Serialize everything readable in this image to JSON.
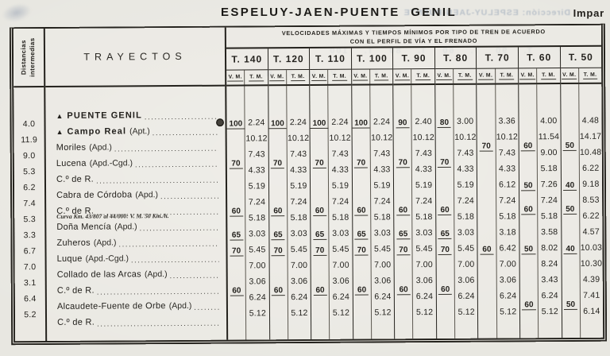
{
  "header": {
    "title": "ESPELUY-JAEN-PUENTE GENIL",
    "page_side": "Impar"
  },
  "bleedthrough": {
    "top_line": "Dirección: ESPELUY-JAEN-PUENTE",
    "header_band": "T. 90   T. 60   T. 80   T. 100",
    "header_band2": "V. M.  T. M.  V. M.  T. M.  V. M.  T. M."
  },
  "table": {
    "distancias_label": "Distancias intermedias",
    "trayectos_label": "TRAYECTOS",
    "caption_line1": "VELOCIDADES MÁXIMAS Y TIEMPOS MÍNIMOS POR TIPO DE TREN DE ACUERDO",
    "caption_line2": "CON EL PERFIL DE VÍA Y EL FRENADO",
    "vm_label": "V. M.",
    "tm_label": "T. M.",
    "stations": [
      {
        "marker": "▲",
        "name": "PUENTE GENIL",
        "bold": true
      },
      {
        "marker": "▲",
        "name": "Campo Real",
        "suffix": "(Apt.)",
        "bold": true,
        "dist": "4.0",
        "bullet": true
      },
      {
        "name": "Moriles",
        "suffix": "(Apd.)",
        "dist": "11.9"
      },
      {
        "name": "Lucena",
        "suffix": "(Apd.-Cgd.)",
        "dist": "9.0"
      },
      {
        "name": "C.º de R.",
        "dist": "5.3"
      },
      {
        "name": "Cabra de Córdoba",
        "suffix": "(Apd.)",
        "dist": "6.2"
      },
      {
        "name": "C.º de R.",
        "dist": "7.4",
        "note": "Curva Km. 43/807 al 44/000: V. M. 50 Km./h."
      },
      {
        "name": "Doña Mencía",
        "suffix": "(Apd.)",
        "dist": "5.3"
      },
      {
        "name": "Zuheros",
        "suffix": "(Apd.)",
        "dist": "3.3"
      },
      {
        "name": "Luque",
        "suffix": "(Apd.-Cgd.)",
        "dist": "6.7"
      },
      {
        "name": "Collado de las Arcas",
        "suffix": "(Apd.)",
        "dist": "7.0"
      },
      {
        "name": "C.º de R.",
        "dist": "3.1"
      },
      {
        "name": "Alcaudete-Fuente de Orbe",
        "suffix": "(Apd.)",
        "dist": "6.4"
      },
      {
        "name": "C.º de R.",
        "dist": "5.2"
      }
    ],
    "columns": [
      {
        "label": "T. 140",
        "vm": [
          {
            "r": 1,
            "v": "100"
          },
          {
            "r": 3.5,
            "v": "70"
          },
          {
            "r": 6.5,
            "v": "60"
          },
          {
            "r": 8,
            "v": "65"
          },
          {
            "r": 9,
            "v": "70"
          },
          {
            "r": 11.5,
            "v": "60"
          }
        ],
        "tm": [
          "2.24",
          "10.12",
          "7.43",
          "4.33",
          "5.19",
          "7.24",
          "5.18",
          "3.03",
          "5.45",
          "7.00",
          "3.06",
          "6.24",
          "5.12"
        ]
      },
      {
        "label": "T. 120",
        "vm": [
          {
            "r": 1,
            "v": "100"
          },
          {
            "r": 3.5,
            "v": "70"
          },
          {
            "r": 6.5,
            "v": "60"
          },
          {
            "r": 8,
            "v": "65"
          },
          {
            "r": 9,
            "v": "70"
          },
          {
            "r": 11.5,
            "v": "60"
          }
        ],
        "tm": [
          "2.24",
          "10.12",
          "7.43",
          "4.33",
          "5.19",
          "7.24",
          "5.18",
          "3.03",
          "5.45",
          "7.00",
          "3.06",
          "6.24",
          "5.12"
        ]
      },
      {
        "label": "T. 110",
        "vm": [
          {
            "r": 1,
            "v": "100"
          },
          {
            "r": 3.5,
            "v": "70"
          },
          {
            "r": 6.5,
            "v": "60"
          },
          {
            "r": 8,
            "v": "65"
          },
          {
            "r": 9,
            "v": "70"
          },
          {
            "r": 11.5,
            "v": "60"
          }
        ],
        "tm": [
          "2.24",
          "10.12",
          "7.43",
          "4.33",
          "5.19",
          "7.24",
          "5.18",
          "3.03",
          "5.45",
          "7.00",
          "3.06",
          "6.24",
          "5.12"
        ]
      },
      {
        "label": "T. 100",
        "vm": [
          {
            "r": 1,
            "v": "100"
          },
          {
            "r": 3.5,
            "v": "70"
          },
          {
            "r": 6.5,
            "v": "60"
          },
          {
            "r": 8,
            "v": "65"
          },
          {
            "r": 9,
            "v": "70"
          },
          {
            "r": 11.5,
            "v": "60"
          }
        ],
        "tm": [
          "2.24",
          "10.12",
          "7.43",
          "4.33",
          "5.19",
          "7.24",
          "5.18",
          "3.03",
          "5.45",
          "7.00",
          "3.06",
          "6.24",
          "5.12"
        ]
      },
      {
        "label": "T. 90",
        "vm": [
          {
            "r": 1,
            "v": "90"
          },
          {
            "r": 3.5,
            "v": "70"
          },
          {
            "r": 6.5,
            "v": "60"
          },
          {
            "r": 8,
            "v": "65"
          },
          {
            "r": 9,
            "v": "70"
          },
          {
            "r": 11.5,
            "v": "60"
          }
        ],
        "tm": [
          "2.40",
          "10.12",
          "7.43",
          "4.33",
          "5.19",
          "7.24",
          "5.18",
          "3.03",
          "5.45",
          "7.00",
          "3.06",
          "6.24",
          "5.12"
        ]
      },
      {
        "label": "T. 80",
        "vm": [
          {
            "r": 1,
            "v": "80"
          },
          {
            "r": 3.5,
            "v": "70"
          },
          {
            "r": 6.5,
            "v": "60"
          },
          {
            "r": 8,
            "v": "65"
          },
          {
            "r": 9,
            "v": "70"
          },
          {
            "r": 11.5,
            "v": "60"
          }
        ],
        "tm": [
          "3.00",
          "10.12",
          "7.43",
          "4.33",
          "5.19",
          "7.24",
          "5.18",
          "3.03",
          "5.45",
          "7.00",
          "3.06",
          "6.24",
          "5.12"
        ]
      },
      {
        "label": "T. 70",
        "vm": [
          {
            "r": 2.5,
            "v": "70"
          },
          {
            "r": 9,
            "v": "60"
          }
        ],
        "tm": [
          "3.36",
          "10.12",
          "7.43",
          "4.33",
          "6.12",
          "7.24",
          "5.18",
          "3.18",
          "6.42",
          "7.00",
          "3.06",
          "6.24",
          "5.12"
        ]
      },
      {
        "label": "T. 60",
        "vm": [
          {
            "r": 2.5,
            "v": "60"
          },
          {
            "r": 5,
            "v": "50"
          },
          {
            "r": 6.5,
            "v": "60"
          },
          {
            "r": 9,
            "v": "50"
          },
          {
            "r": 12.5,
            "v": "60"
          }
        ],
        "tm": [
          "4.00",
          "11.54",
          "9.00",
          "5.18",
          "7.26",
          "7.24",
          "5.18",
          "3.58",
          "8.02",
          "8.24",
          "3.43",
          "6.24",
          "5.12"
        ]
      },
      {
        "label": "T. 50",
        "vm": [
          {
            "r": 2.5,
            "v": "50"
          },
          {
            "r": 5,
            "v": "40"
          },
          {
            "r": 6.5,
            "v": "50"
          },
          {
            "r": 9,
            "v": "40"
          },
          {
            "r": 12.5,
            "v": "50"
          }
        ],
        "tm": [
          "4.48",
          "14.17",
          "10.48",
          "6.22",
          "9.18",
          "8.53",
          "6.22",
          "4.57",
          "10.03",
          "10.30",
          "4.39",
          "7.41",
          "6.14"
        ]
      }
    ]
  }
}
